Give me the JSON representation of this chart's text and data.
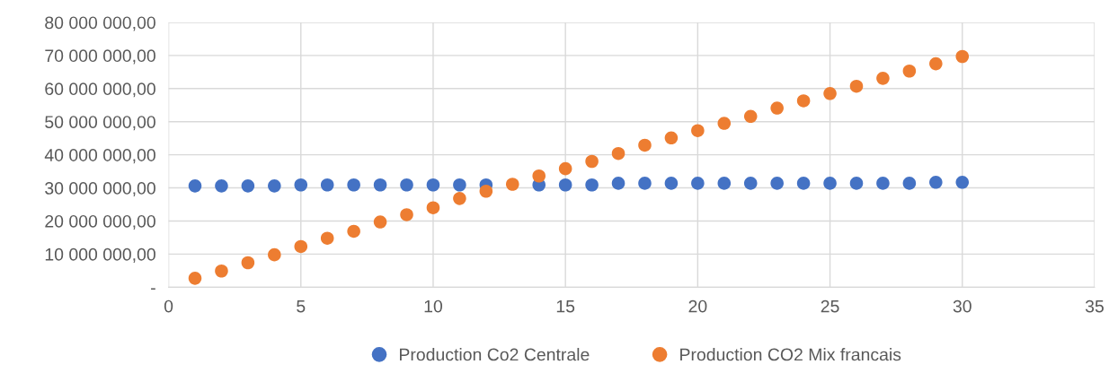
{
  "chart_data": {
    "type": "scatter",
    "x": [
      1,
      2,
      3,
      4,
      5,
      6,
      7,
      8,
      9,
      10,
      11,
      12,
      13,
      14,
      15,
      16,
      17,
      18,
      19,
      20,
      21,
      22,
      23,
      24,
      25,
      26,
      27,
      28,
      29,
      30
    ],
    "series": [
      {
        "name": "Production Co2 Centrale",
        "color": "#4472c4",
        "values": [
          30600000,
          30600000,
          30600000,
          30600000,
          30900000,
          30900000,
          30900000,
          30900000,
          30900000,
          30900000,
          30900000,
          30900000,
          null,
          30900000,
          30900000,
          30900000,
          31400000,
          31400000,
          31400000,
          31400000,
          31400000,
          31400000,
          31400000,
          31400000,
          31400000,
          31400000,
          31400000,
          31400000,
          31700000,
          31700000
        ]
      },
      {
        "name": "Production CO2 Mix francais",
        "color": "#ed7d31",
        "values": [
          2700000,
          4900000,
          7400000,
          9800000,
          12300000,
          14800000,
          16900000,
          19700000,
          21900000,
          24000000,
          26800000,
          29000000,
          31100000,
          33600000,
          35800000,
          38000000,
          40400000,
          42900000,
          45100000,
          47300000,
          49500000,
          51600000,
          54100000,
          56300000,
          58500000,
          60700000,
          63100000,
          65300000,
          67500000,
          69700000
        ]
      }
    ],
    "xlim": [
      0,
      35
    ],
    "xticks": [
      0,
      5,
      10,
      15,
      20,
      25,
      30,
      35
    ],
    "ylim": [
      0,
      80000000
    ],
    "yticks": [
      {
        "value": 0,
        "label": "-"
      },
      {
        "value": 10000000,
        "label": "10 000 000,00"
      },
      {
        "value": 20000000,
        "label": "20 000 000,00"
      },
      {
        "value": 30000000,
        "label": "30 000 000,00"
      },
      {
        "value": 40000000,
        "label": "40 000 000,00"
      },
      {
        "value": 50000000,
        "label": "50 000 000,00"
      },
      {
        "value": 60000000,
        "label": "60 000 000,00"
      },
      {
        "value": 70000000,
        "label": "70 000 000,00"
      },
      {
        "value": 80000000,
        "label": "80 000 000,00"
      }
    ],
    "grid": true,
    "legend": "bottom",
    "marker": "circle"
  }
}
